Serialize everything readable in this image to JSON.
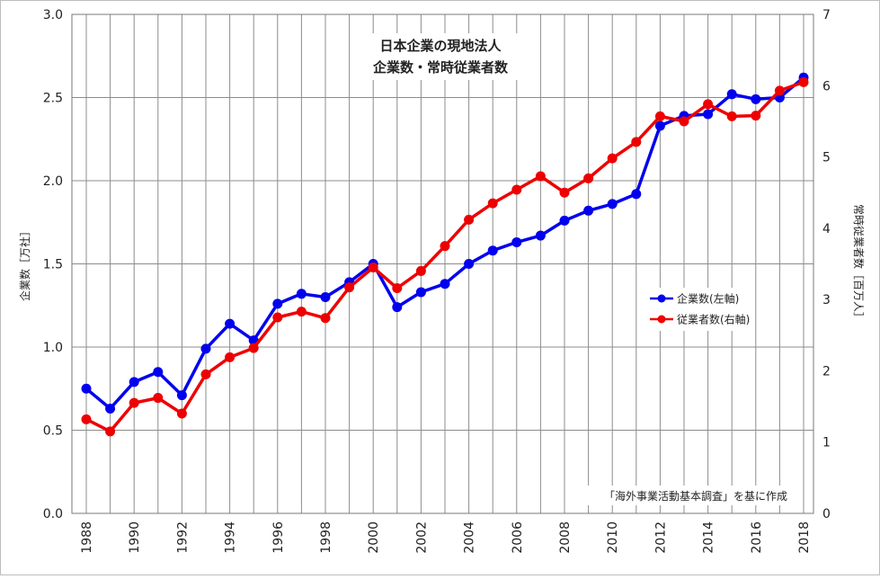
{
  "chart_data": {
    "type": "line",
    "title_line1": "日本企業の現地法人",
    "title_line2": "企業数・常時従業者数",
    "ylabel_left": "企業数［万社］",
    "ylabel_right": "常時従業者数［百万人］",
    "ylim_left": [
      0,
      3.0
    ],
    "ylim_right": [
      0,
      7
    ],
    "yticks_left": [
      "0.0",
      "0.5",
      "1.0",
      "1.5",
      "2.0",
      "2.5",
      "3.0"
    ],
    "yticks_right": [
      "0",
      "1",
      "2",
      "3",
      "4",
      "5",
      "6",
      "7"
    ],
    "x": [
      1988,
      1989,
      1990,
      1991,
      1992,
      1993,
      1994,
      1995,
      1996,
      1997,
      1998,
      1999,
      2000,
      2001,
      2002,
      2003,
      2004,
      2005,
      2006,
      2007,
      2008,
      2009,
      2010,
      2011,
      2012,
      2013,
      2014,
      2015,
      2016,
      2017,
      2018
    ],
    "xtick_labels": [
      "1988",
      "1990",
      "1992",
      "1994",
      "1996",
      "1998",
      "2000",
      "2002",
      "2004",
      "2006",
      "2008",
      "2010",
      "2012",
      "2014",
      "2016",
      "2018"
    ],
    "series": [
      {
        "name": "企業数(左軸)",
        "axis": "left",
        "color": "#0000ee",
        "values": [
          0.75,
          0.63,
          0.79,
          0.85,
          0.71,
          0.99,
          1.14,
          1.04,
          1.26,
          1.32,
          1.3,
          1.39,
          1.5,
          1.24,
          1.33,
          1.38,
          1.5,
          1.58,
          1.63,
          1.67,
          1.76,
          1.82,
          1.86,
          1.92,
          2.33,
          2.39,
          2.4,
          2.52,
          2.49,
          2.5,
          2.62
        ]
      },
      {
        "name": "従業者数(右軸)",
        "axis": "right",
        "color": "#ee0000",
        "values": [
          1.32,
          1.15,
          1.55,
          1.62,
          1.4,
          1.95,
          2.19,
          2.32,
          2.75,
          2.83,
          2.74,
          3.17,
          3.45,
          3.16,
          3.4,
          3.75,
          4.12,
          4.35,
          4.54,
          4.73,
          4.5,
          4.7,
          4.98,
          5.21,
          5.57,
          5.5,
          5.74,
          5.57,
          5.58,
          5.93,
          6.05
        ]
      }
    ],
    "note": "「海外事業活動基本調査」を基に作成",
    "legend_position": "right"
  }
}
